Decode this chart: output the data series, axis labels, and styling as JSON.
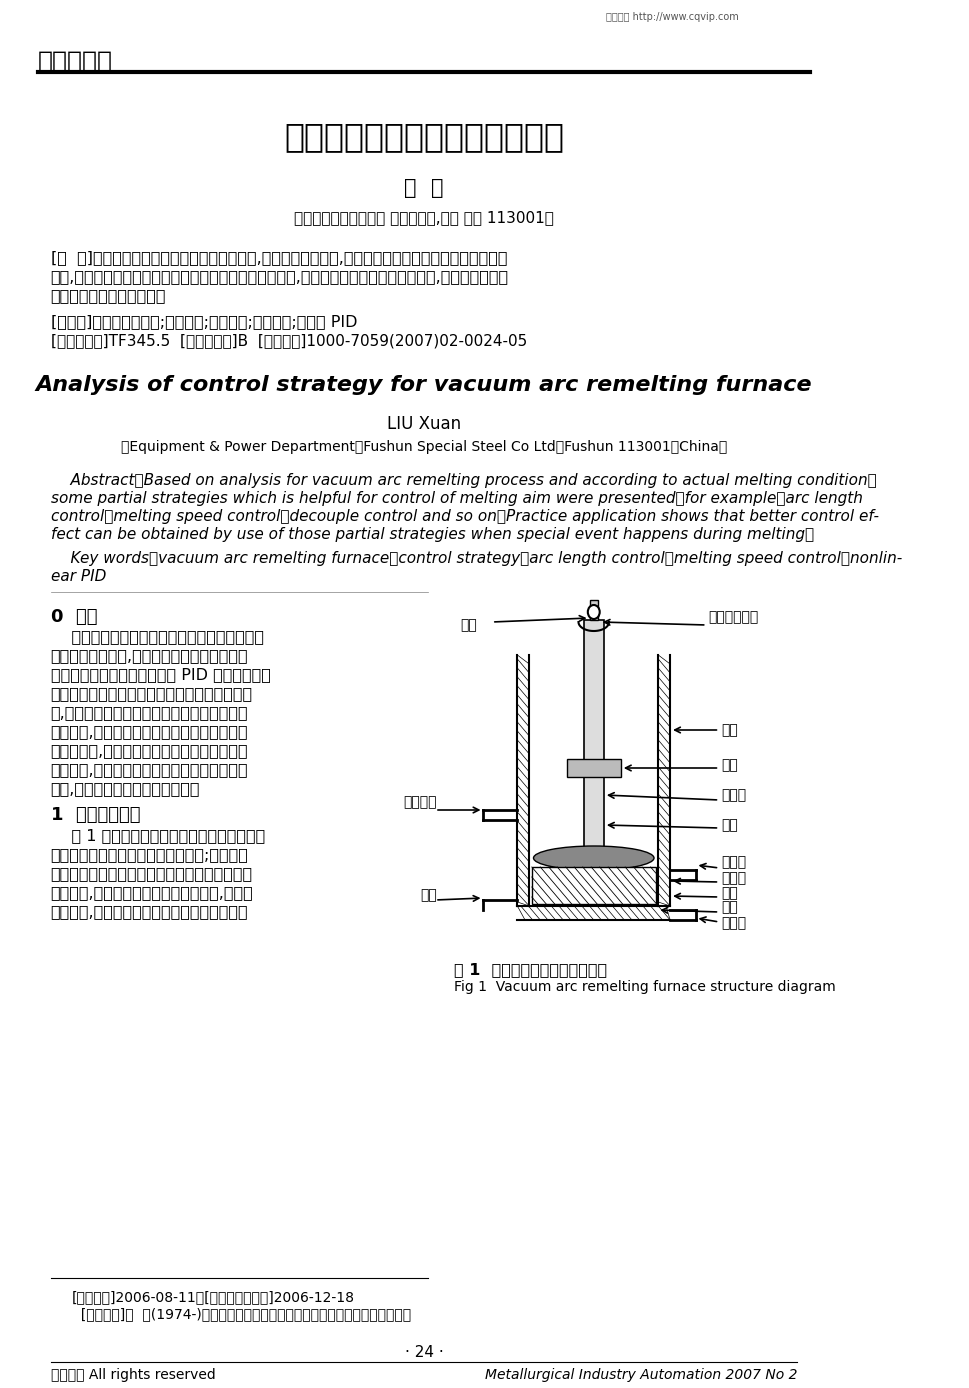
{
  "bg_color": "#ffffff",
  "header_section": "系统与装置",
  "website": "维普资讯 http://www.cqvip.com",
  "title_cn": "真空电弧重熔炉控制策略的分析",
  "author_cn": "刘  轩",
  "affiliation_cn": "（抚顺特殊钢有限公司 装备动力部,辽宁 抚顺 113001）",
  "abs_cn_line1": "[摘  要]通过对真空电弧重熔炉工艺过程的分析,根据冶炼实际情况,提出了一些有助于控制冶炼目标的局部",
  "abs_cn_line2": "策略,如弧长控制、熔速控制、解耦控制等。实际应用表明,当熔炼过程出现各种特殊情况时,采用这些局部策",
  "abs_cn_line3": "略能得到更好的控制效果。",
  "keywords_cn": "[关键词]真空电弧重熔炉;控制策略;弧长控制;熔速控制;非线性 PID",
  "classification_text": "[中图分类号]TF345.5  [文献标识码]B  [文章编号]1000-7059(2007)02-0024-05",
  "title_en": "Analysis of control strategy for vacuum arc remelting furnace",
  "author_en": "LIU Xuan",
  "affiliation_en": "（Equipment & Power Department，Fushun Special Steel Co Ltd，Fushun 113001，China）",
  "abs_en_line1": "    Abstract：Based on analysis for vacuum arc remelting process and according to actual melting condition，",
  "abs_en_line2": "some partial strategies which is helpful for control of melting aim were presented，for example，arc length",
  "abs_en_line3": "control，melting speed control，decouple control and so on．Practice application shows that better control ef-",
  "abs_en_line4": "fect can be obtained by use of those partial strategies when special event happens during melting．",
  "kw_en_line1": "    Key words：vacuum arc remelting furnace；control strategy；arc length control；melting speed control；nonlin-",
  "kw_en_line2": "ear PID",
  "section0_title": "0  简介",
  "s0_lines": [
    "    真空电弧重熔炉（又称真空自耗炉）是一种复",
    "杂的真空冶炼设备,主要用于熔炼难熔金属及某",
    "些稀有金属的铸锭。采用传统 PID 控制器作为熔",
    "速控制和进给控制手段的一些小型自耗炉控制系",
    "统,其过程参数的稳定性较国外炉子有不小的差",
    "距。为此,通过对国外最新控制策略的分析研究",
    "和技术转化,并实施于我们自行研制的控制系统",
    "的改造上,取得了很好的控制效果。对提升控制",
    "水平,提高合金重量具有很大意义。"
  ],
  "section1_title": "1  基本工作原理",
  "s1_lines": [
    "    图 1 所示为真空电弧重熔炉结构示意图。熔",
    "炼电源正极与水冷套中的结晶器相连;电源负极",
    "与电极拉杆相连。电极拉杆通过滑动真空密封进",
    "入炉体内,待熔炼电极夹紧在电极拉杆上,且炉体",
    "抽空以后,电极下降并与在结晶器底部同样材料"
  ],
  "fig1_label": "图 1  真空电弧重熔炉结构示意图",
  "fig1_label_en": "Fig 1  Vacuum arc remelting furnace structure diagram",
  "footnote1": "[收稿日期]2006-08-11；[修改稿收到日期]2006-12-18",
  "footnote2": "  [作者简介]刘  轩(1974-)，女，辽宁抚顺人，工程师，主要从事电气自动化工作。",
  "page_num": "· 24 ·",
  "footer_left": "维普资讯 All rights reserved",
  "footer_right": "Metallurgical Industry Automation 2007 No 2"
}
